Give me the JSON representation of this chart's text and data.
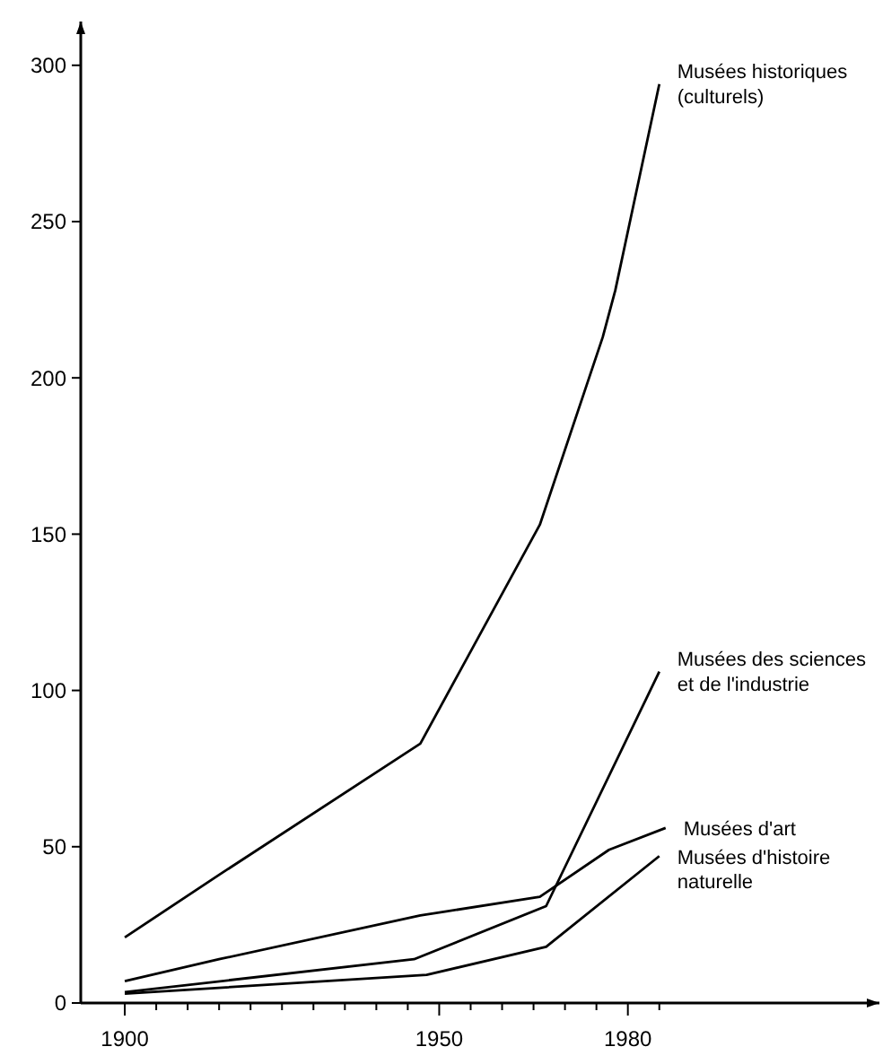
{
  "chart_data": {
    "type": "line",
    "xlim": [
      1893,
      2020
    ],
    "ylim": [
      0,
      314
    ],
    "xticks": [
      1900,
      {
        "value": 1905,
        "label": null
      },
      {
        "value": 1910,
        "label": null
      },
      {
        "value": 1915,
        "label": null
      },
      {
        "value": 1920,
        "label": null
      },
      {
        "value": 1925,
        "label": null
      },
      {
        "value": 1930,
        "label": null
      },
      {
        "value": 1935,
        "label": null
      },
      {
        "value": 1940,
        "label": null
      },
      {
        "value": 1945,
        "label": null
      },
      1950,
      {
        "value": 1955,
        "label": null
      },
      {
        "value": 1960,
        "label": null
      },
      {
        "value": 1965,
        "label": null
      },
      {
        "value": 1970,
        "label": null
      },
      {
        "value": 1975,
        "label": null
      },
      1980,
      {
        "value": 1985,
        "label": null
      }
    ],
    "yticks": [
      0,
      50,
      100,
      150,
      200,
      250,
      300
    ],
    "grid": false,
    "marker": "none",
    "line_style": "solid",
    "series": [
      {
        "name": "Musées historiques (culturels)",
        "color": "#000000",
        "x": [
          1900,
          1915,
          1947,
          1966,
          1976,
          1978,
          1985
        ],
        "values": [
          21,
          41,
          83,
          153,
          213,
          228,
          294
        ]
      },
      {
        "name": "Musées des sciences et de l'industrie",
        "color": "#000000",
        "x": [
          1900,
          1946,
          1967,
          1985
        ],
        "values": [
          3.5,
          14,
          31,
          106
        ]
      },
      {
        "name": "Musées d'art",
        "color": "#000000",
        "x": [
          1900,
          1915,
          1947,
          1966,
          1977,
          1986
        ],
        "values": [
          7,
          14,
          28,
          34,
          49,
          56
        ]
      },
      {
        "name": "Musées d'histoire naturelle",
        "color": "#000000",
        "x": [
          1900,
          1948,
          1967,
          1985
        ],
        "values": [
          3,
          9,
          18,
          47
        ]
      }
    ]
  }
}
